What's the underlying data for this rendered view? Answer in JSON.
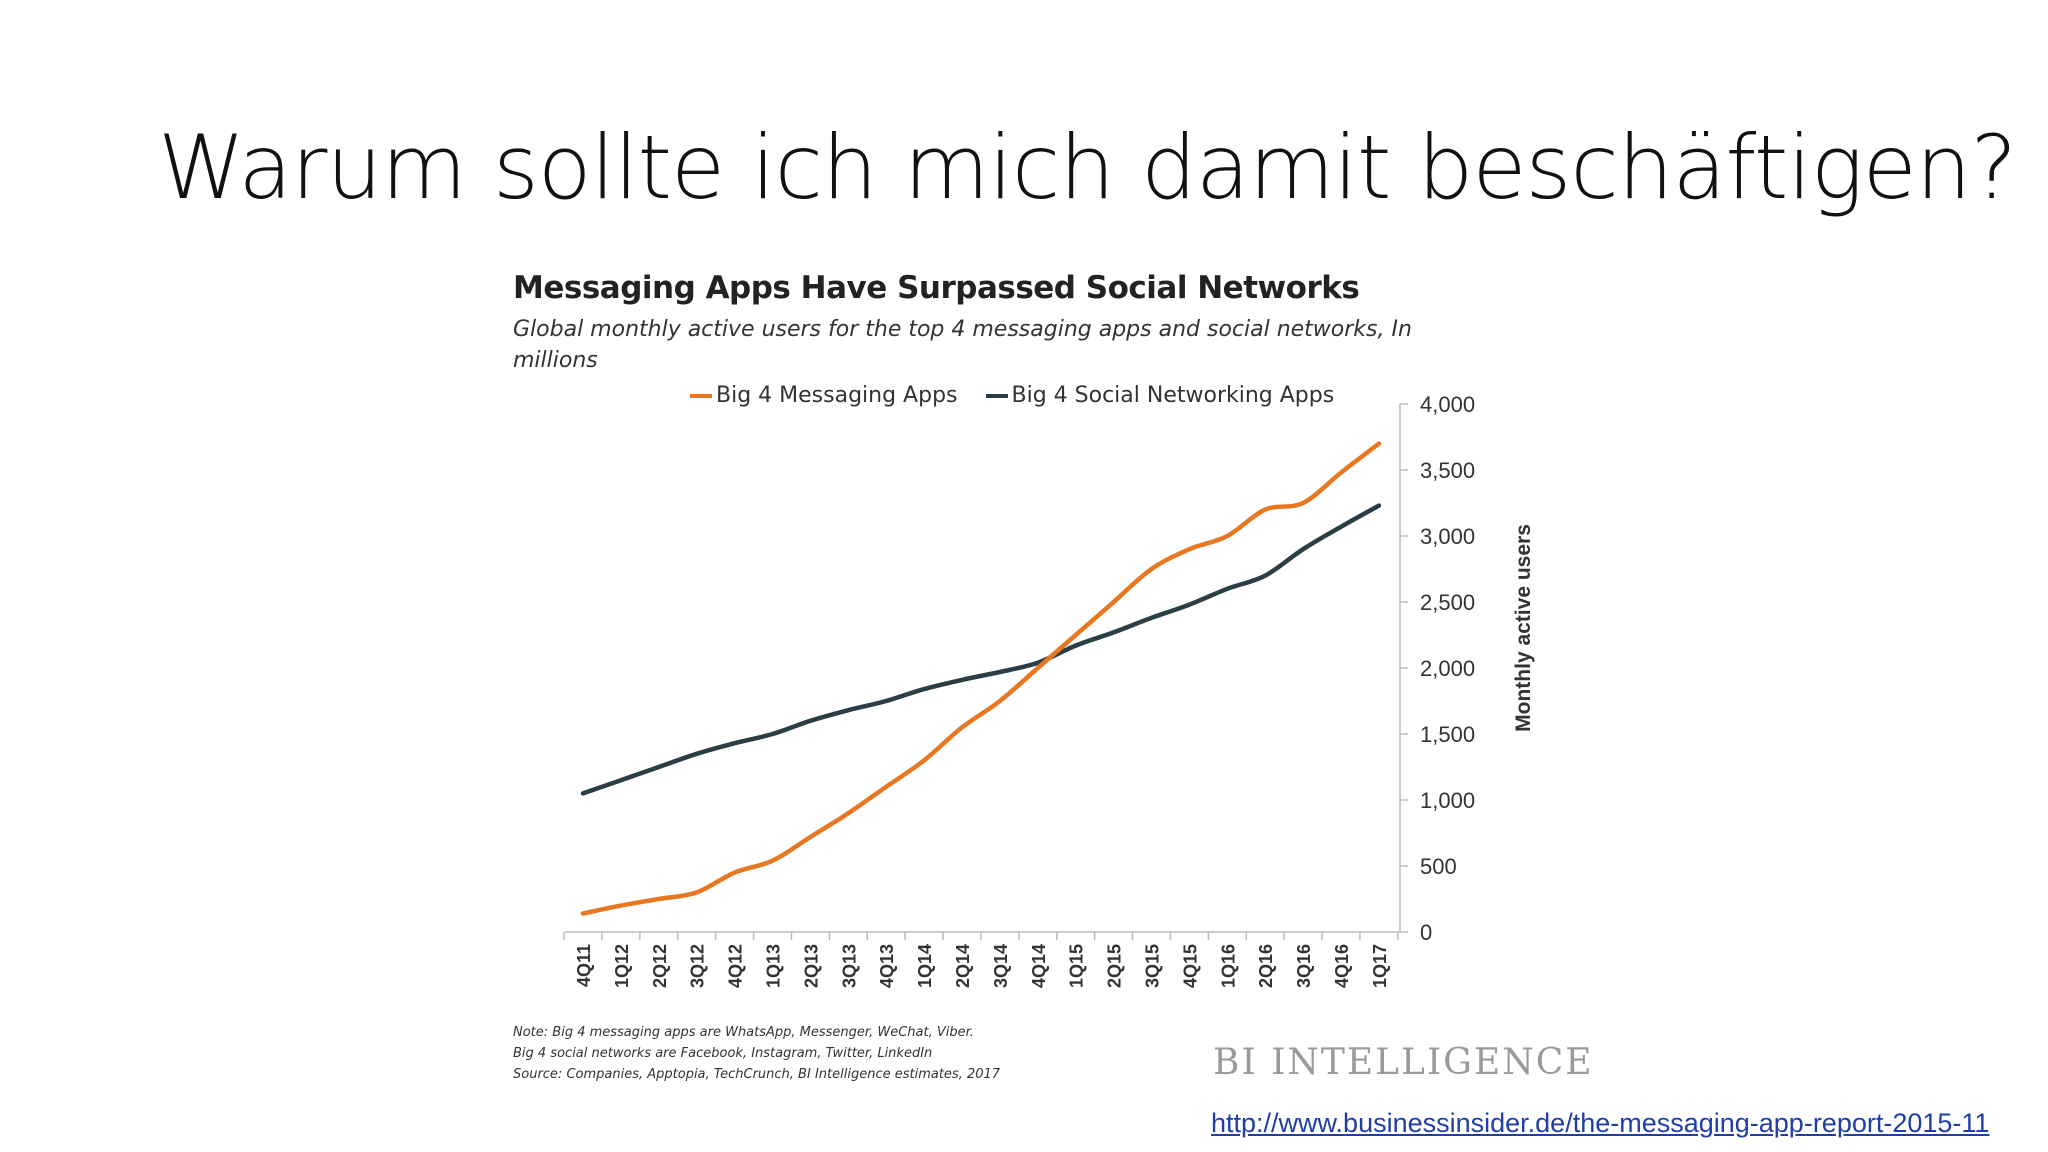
{
  "slide": {
    "title": "Warum sollte ich mich damit beschäftigen?",
    "link": "http://www.businessinsider.de/the-messaging-app-report-2015-11"
  },
  "chart_data": {
    "type": "line",
    "title": "Messaging Apps Have Surpassed Social Networks",
    "subtitle": "Global monthly active users for the top 4 messaging apps and social networks, In millions",
    "ylabel": "Monthly active users",
    "xlabel": "",
    "ylim": [
      0,
      4000
    ],
    "yticks": [
      "0",
      "500",
      "1,000",
      "1,500",
      "2,000",
      "2,500",
      "3,000",
      "3,500",
      "4,000"
    ],
    "grid": false,
    "legend_position": "top",
    "x": [
      "4Q11",
      "1Q12",
      "2Q12",
      "3Q12",
      "4Q12",
      "1Q13",
      "2Q13",
      "3Q13",
      "4Q13",
      "1Q14",
      "2Q14",
      "3Q14",
      "4Q14",
      "1Q15",
      "2Q15",
      "3Q15",
      "4Q15",
      "1Q16",
      "2Q16",
      "3Q16",
      "4Q16",
      "1Q17"
    ],
    "series": [
      {
        "name": "Big 4 Messaging Apps",
        "color": "#e87722",
        "values": [
          140,
          200,
          250,
          300,
          450,
          540,
          720,
          900,
          1100,
          1300,
          1550,
          1750,
          2000,
          2250,
          2500,
          2750,
          2900,
          3000,
          3200,
          3250,
          3480,
          3700
        ]
      },
      {
        "name": "Big 4 Social Networking Apps",
        "color": "#2b3d45",
        "values": [
          1050,
          1150,
          1250,
          1350,
          1430,
          1500,
          1600,
          1680,
          1750,
          1840,
          1910,
          1970,
          2040,
          2170,
          2270,
          2380,
          2480,
          2600,
          2700,
          2900,
          3070,
          3230
        ]
      }
    ],
    "notes": [
      "Note: Big 4 messaging apps are WhatsApp, Messenger, WeChat, Viber.",
      "Big 4 social networks are Facebook, Instagram, Twitter, LinkedIn",
      "Source: Companies, Apptopia, TechCrunch, BI Intelligence estimates, 2017"
    ],
    "brand": "BI INTELLIGENCE"
  }
}
